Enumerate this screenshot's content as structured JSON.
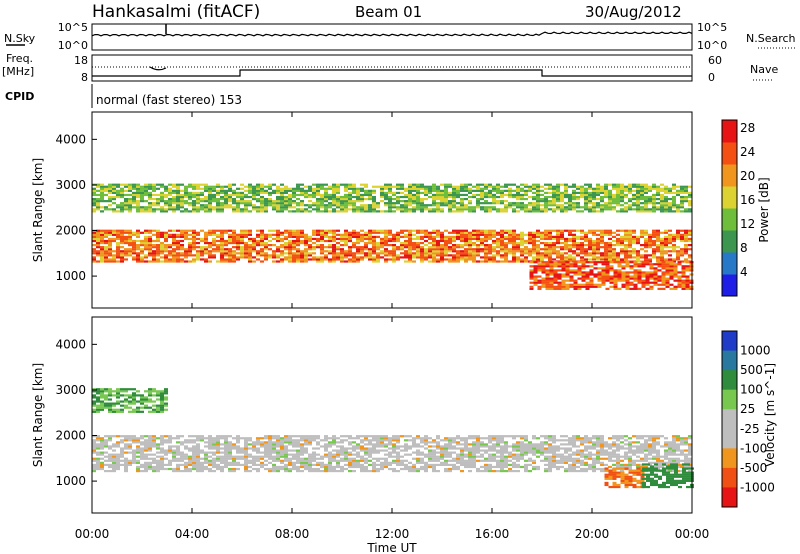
{
  "header": {
    "station": "Hankasalmi (fitACF)",
    "beam": "Beam 01",
    "date": "30/Aug/2012"
  },
  "noise_panel": {
    "left_label": "N.Sky",
    "right_label": "N.Search",
    "left_ticks": [
      "10^5",
      "10^0"
    ],
    "right_ticks": [
      "10^5",
      "10^0"
    ]
  },
  "freq_panel": {
    "label_line1": "Freq.",
    "label_line2": "[MHz]",
    "left_ticks": [
      "18",
      "8"
    ],
    "right_ticks": [
      "60",
      "0"
    ],
    "right_label": "Nave"
  },
  "cpid": {
    "label": "CPID",
    "text": "normal (fast stereo) 153"
  },
  "chart_data": [
    {
      "type": "heatmap",
      "title": "",
      "xlabel": "Time UT",
      "ylabel": "Slant Range [km]",
      "x_ticks": [
        "00:00",
        "04:00",
        "08:00",
        "12:00",
        "16:00",
        "20:00",
        "00:00"
      ],
      "xlim_hours": [
        0,
        24
      ],
      "y_ticks": [
        1000,
        2000,
        3000,
        4000
      ],
      "ylim": [
        300,
        4600
      ],
      "colorbar": {
        "label": "Power [dB]",
        "ticks": [
          "4",
          "8",
          "12",
          "16",
          "20",
          "24",
          "28"
        ],
        "range": [
          0,
          30
        ]
      },
      "features": [
        {
          "name": "main-band",
          "from_h": 0,
          "to_h": 24,
          "range_km": [
            1300,
            2000
          ],
          "power_db": 24
        },
        {
          "name": "upper-band",
          "from_h": 0,
          "to_h": 24,
          "range_km": [
            2400,
            3000
          ],
          "power_db": 14
        },
        {
          "name": "lower-band",
          "from_h": 17.5,
          "to_h": 24,
          "range_km": [
            700,
            1300
          ],
          "power_db": 26
        }
      ]
    },
    {
      "type": "heatmap",
      "title": "",
      "xlabel": "Time UT",
      "ylabel": "Slant Range [km]",
      "x_ticks": [
        "00:00",
        "04:00",
        "08:00",
        "12:00",
        "16:00",
        "20:00",
        "00:00"
      ],
      "xlim_hours": [
        0,
        24
      ],
      "y_ticks": [
        1000,
        2000,
        3000,
        4000
      ],
      "ylim": [
        300,
        4600
      ],
      "colorbar": {
        "label": "Velocity [m s^-1]",
        "ticks": [
          "1000",
          "500",
          "100",
          "25",
          "-25",
          "-100",
          "-500",
          "-1000"
        ]
      },
      "features": [
        {
          "name": "ground-scatter",
          "from_h": 0,
          "to_h": 24,
          "range_km": [
            1200,
            2000
          ],
          "velocity": 0
        },
        {
          "name": "positive-patch",
          "from_h": 0,
          "to_h": 3,
          "range_km": [
            2500,
            3000
          ],
          "velocity": 100
        },
        {
          "name": "negative-patch",
          "from_h": 20.5,
          "to_h": 22,
          "range_km": [
            850,
            1300
          ],
          "velocity": -100
        },
        {
          "name": "positive-patch-2",
          "from_h": 22,
          "to_h": 24,
          "range_km": [
            850,
            1350
          ],
          "velocity": 200
        }
      ]
    }
  ]
}
